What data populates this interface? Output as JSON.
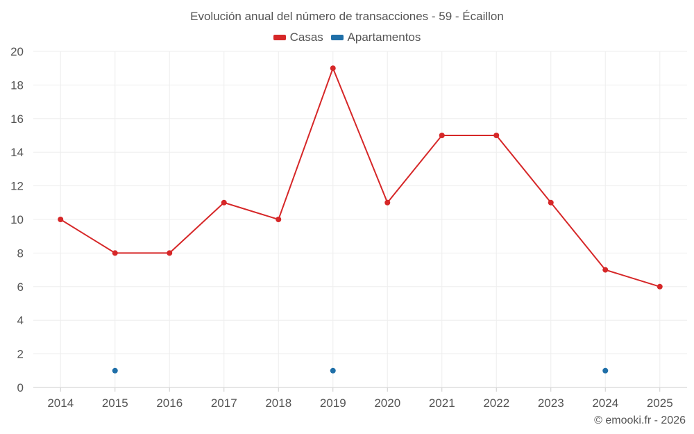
{
  "chart_data": {
    "type": "line",
    "title": "Evolución anual del número de transacciones - 59 - Écaillon",
    "categories": [
      "2014",
      "2015",
      "2016",
      "2017",
      "2018",
      "2019",
      "2020",
      "2021",
      "2022",
      "2023",
      "2024",
      "2025"
    ],
    "series": [
      {
        "name": "Casas",
        "color": "#d62728",
        "values": [
          10,
          8,
          8,
          11,
          10,
          19,
          11,
          15,
          15,
          11,
          7,
          6
        ],
        "line": true
      },
      {
        "name": "Apartamentos",
        "color": "#1f6fa8",
        "values": [
          null,
          1,
          null,
          null,
          null,
          1,
          null,
          null,
          null,
          null,
          1,
          null
        ],
        "line": false
      }
    ],
    "ylim": [
      0,
      20
    ],
    "yticks": [
      0,
      2,
      4,
      6,
      8,
      10,
      12,
      14,
      16,
      18,
      20
    ],
    "grid": true,
    "legend": "top-center",
    "xlabel": "",
    "ylabel": ""
  },
  "credit": "© emooki.fr - 2026"
}
